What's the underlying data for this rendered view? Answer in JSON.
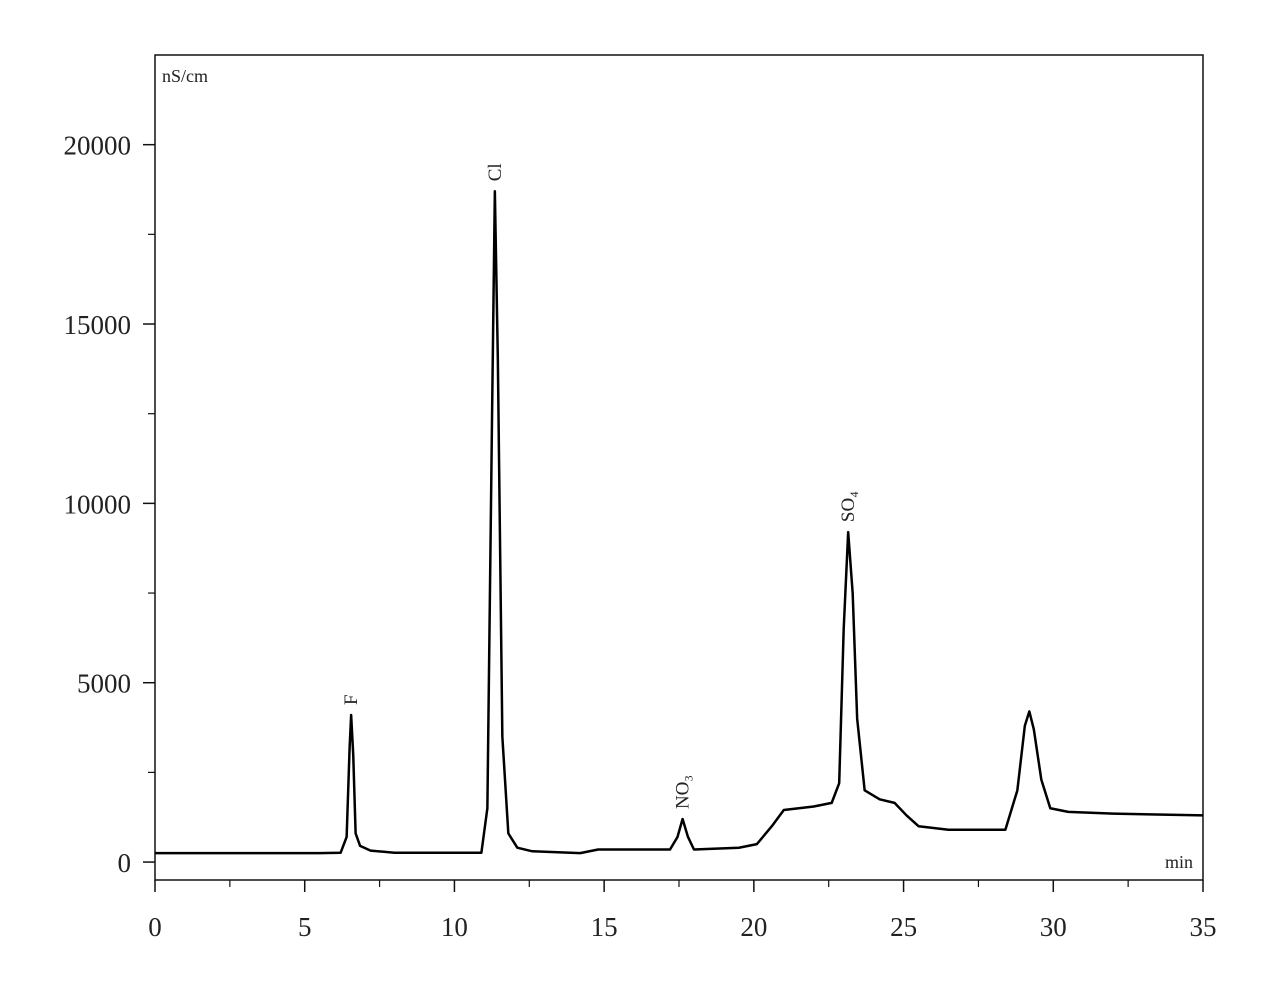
{
  "chart_data": {
    "type": "line",
    "y_label": "nS/cm",
    "x_label": "min",
    "x": [
      0,
      5.5,
      6.2,
      6.4,
      6.5,
      6.55,
      6.62,
      6.7,
      6.85,
      7.2,
      8,
      10.9,
      11.1,
      11.25,
      11.35,
      11.45,
      11.6,
      11.8,
      12.1,
      12.6,
      14.2,
      14.8,
      17.2,
      17.45,
      17.62,
      17.8,
      18.0,
      19.5,
      20.1,
      20.6,
      21.0,
      22.0,
      22.6,
      22.85,
      23.0,
      23.15,
      23.3,
      23.45,
      23.7,
      24.2,
      24.7,
      25.1,
      25.5,
      26.5,
      28.4,
      28.8,
      29.05,
      29.2,
      29.35,
      29.6,
      29.9,
      30.5,
      32,
      35
    ],
    "values": [
      250,
      250,
      260,
      700,
      3200,
      4100,
      3000,
      800,
      450,
      320,
      260,
      260,
      1500,
      12000,
      18700,
      14000,
      3500,
      800,
      400,
      300,
      250,
      350,
      350,
      700,
      1200,
      700,
      350,
      400,
      500,
      1000,
      1450,
      1550,
      1650,
      2200,
      6500,
      9200,
      7500,
      4000,
      2000,
      1750,
      1650,
      1300,
      1000,
      900,
      900,
      2000,
      3800,
      4200,
      3700,
      2300,
      1500,
      1400,
      1350,
      1300
    ],
    "color": "#000000",
    "peaks": [
      {
        "label": "F",
        "x": 6.55
      },
      {
        "label": "Cl",
        "x": 11.35
      },
      {
        "label": "NO₃",
        "x": 17.62
      },
      {
        "label": "SO₄",
        "x": 23.15
      }
    ],
    "xlim": [
      0,
      35
    ],
    "xticks": [
      0,
      5,
      10,
      15,
      20,
      25,
      30,
      35
    ],
    "ylim": [
      -500,
      22500
    ],
    "yticks": [
      0,
      5000,
      10000,
      15000,
      20000
    ]
  }
}
